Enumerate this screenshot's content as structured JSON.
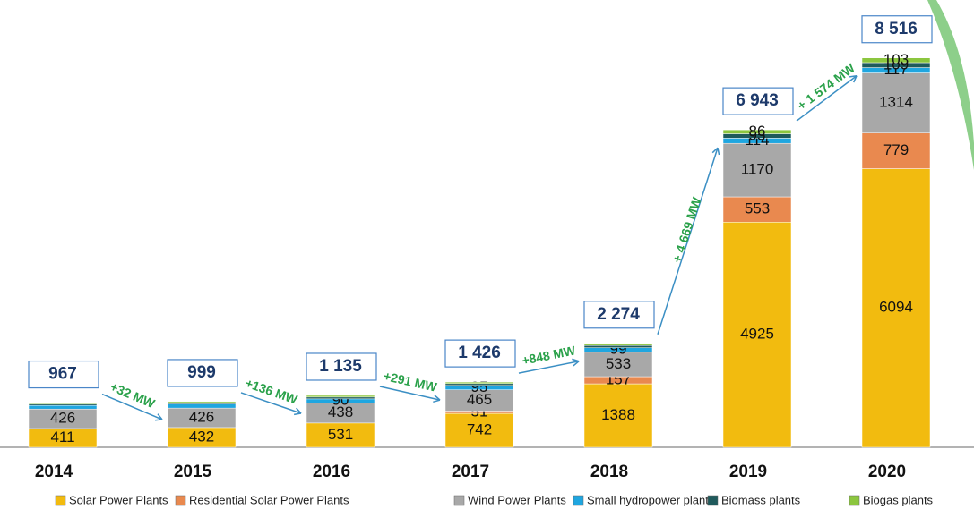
{
  "chart_data": {
    "type": "stacked_bar",
    "categories": [
      "2014",
      "2015",
      "2016",
      "2017",
      "2018",
      "2019",
      "2020"
    ],
    "series": [
      {
        "name": "Solar Power Plants",
        "color": "#f2bb0f",
        "values": [
          411,
          432,
          531,
          742,
          1388,
          4925,
          6094
        ],
        "value_labels": [
          "411",
          "432",
          "531",
          "742",
          "1388",
          "4925",
          "6094"
        ]
      },
      {
        "name": "Residential Solar Power Plants",
        "color": "#e9894f",
        "values": [
          0,
          0,
          0,
          51,
          157,
          553,
          779
        ],
        "value_labels": [
          null,
          null,
          null,
          "51",
          "157",
          "553",
          "779"
        ]
      },
      {
        "name": "Wind Power Plants",
        "color": "#a8a8a8",
        "values": [
          426,
          426,
          438,
          465,
          533,
          1170,
          1314
        ],
        "value_labels": [
          "426",
          "426",
          "438",
          "465",
          "533",
          "1170",
          "1314"
        ]
      },
      {
        "name": "Small hydropower plants",
        "color": "#1fa6e0",
        "values": [
          80,
          86,
          90,
          95,
          99,
          114,
          117
        ],
        "value_labels": [
          null,
          null,
          "90",
          "95",
          "99",
          "114",
          "117"
        ]
      },
      {
        "name": "Biomass plants",
        "color": "#1f5a5c",
        "values": [
          30,
          30,
          40,
          40,
          50,
          95,
          109
        ],
        "value_labels": [
          null,
          null,
          null,
          null,
          null,
          "95",
          "109"
        ]
      },
      {
        "name": "Biogas plants",
        "color": "#8cc63f",
        "values": [
          20,
          25,
          36,
          33,
          47,
          86,
          103
        ],
        "value_labels": [
          null,
          null,
          null,
          null,
          null,
          "86",
          "103"
        ]
      }
    ],
    "totals": [
      967,
      999,
      1135,
      1426,
      2274,
      6943,
      8516
    ],
    "total_labels": [
      "967",
      "999",
      "1 135",
      "1 426",
      "2 274",
      "6 943",
      "8 516"
    ],
    "annotations": [
      "+32 MW",
      "+136 MW",
      "+291 MW",
      "+848 MW",
      "+ 4 669 MW",
      "+ 1 574 MW"
    ],
    "ylim": [
      0,
      9000
    ]
  }
}
